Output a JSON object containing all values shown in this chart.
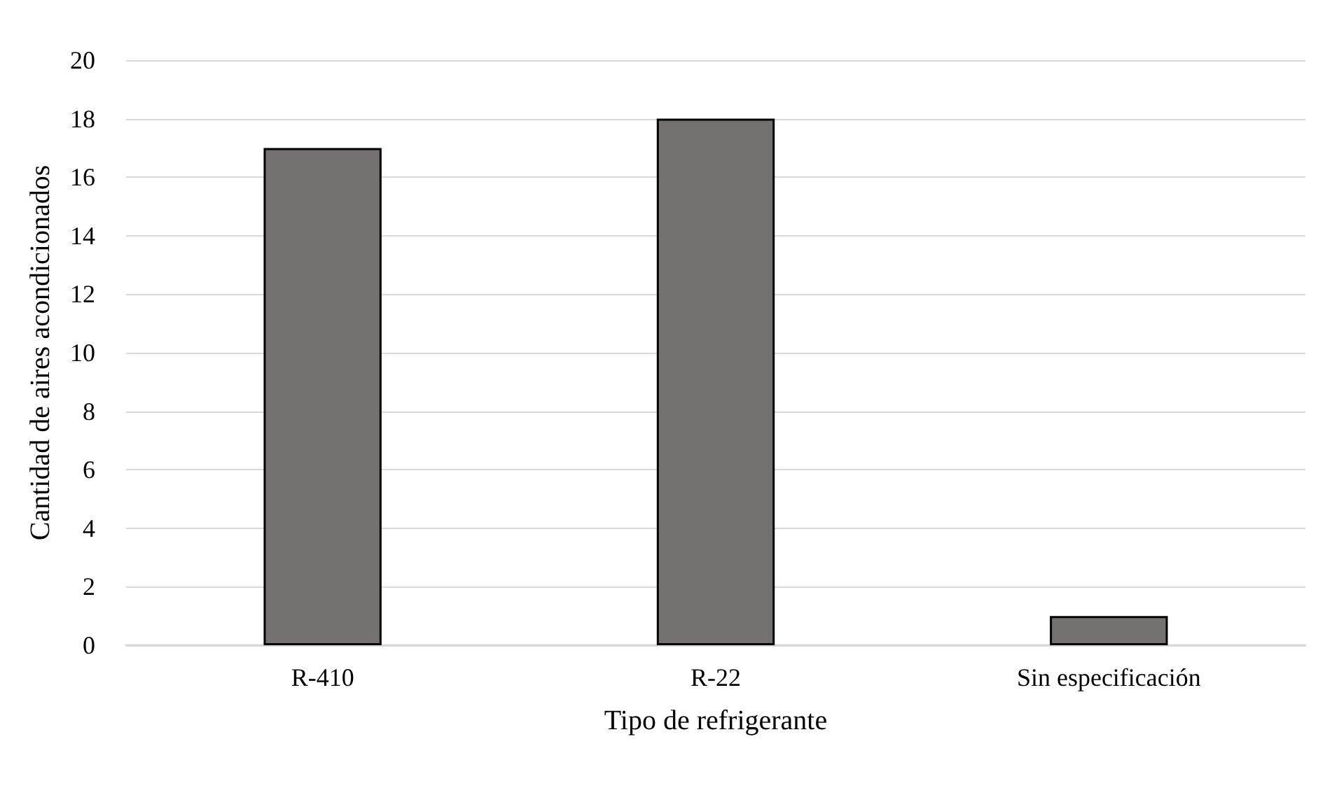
{
  "chart_data": {
    "type": "bar",
    "xlabel": "Tipo de refrigerante",
    "ylabel": "Cantidad de aires acondicionados",
    "categories": [
      "R-410",
      "R-22",
      "Sin especificación"
    ],
    "values": [
      17,
      18,
      1
    ],
    "color": "#767171",
    "ylim": [
      0,
      20
    ],
    "yticks": [
      0,
      2,
      4,
      6,
      8,
      10,
      12,
      14,
      16,
      18,
      20
    ],
    "grid": "y"
  }
}
